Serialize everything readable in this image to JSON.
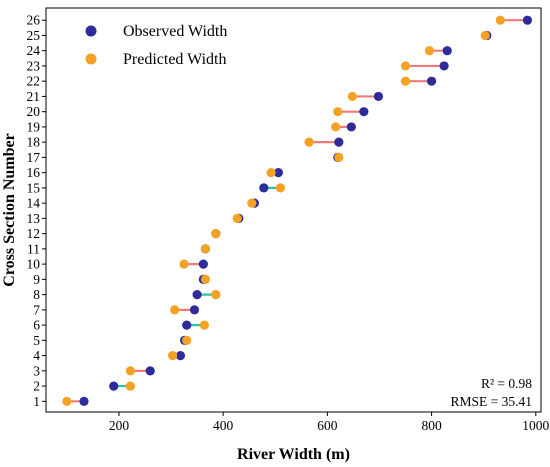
{
  "chart_data": {
    "type": "scatter",
    "xlabel": "River Width (m)",
    "ylabel": "Cross Section Number",
    "xlim": [
      60,
      1010
    ],
    "ylim": [
      0.3,
      26.8
    ],
    "xticks": [
      200,
      400,
      600,
      800,
      1000
    ],
    "yticks": [
      1,
      2,
      3,
      4,
      5,
      6,
      7,
      8,
      9,
      10,
      11,
      12,
      13,
      14,
      15,
      16,
      17,
      18,
      19,
      20,
      21,
      22,
      23,
      24,
      25,
      26
    ],
    "legend_position": "top-left",
    "grid": false,
    "series": [
      {
        "name": "Observed Width",
        "color": "#2e2b9a",
        "values": [
          {
            "section": 1,
            "width": 133
          },
          {
            "section": 2,
            "width": 190
          },
          {
            "section": 3,
            "width": 260
          },
          {
            "section": 4,
            "width": 318
          },
          {
            "section": 5,
            "width": 326
          },
          {
            "section": 6,
            "width": 330
          },
          {
            "section": 7,
            "width": 345
          },
          {
            "section": 8,
            "width": 350
          },
          {
            "section": 9,
            "width": 362
          },
          {
            "section": 10,
            "width": 362
          },
          {
            "section": 11,
            "width": 366
          },
          {
            "section": 12,
            "width": 386
          },
          {
            "section": 13,
            "width": 430
          },
          {
            "section": 14,
            "width": 460
          },
          {
            "section": 15,
            "width": 478
          },
          {
            "section": 16,
            "width": 506
          },
          {
            "section": 17,
            "width": 620
          },
          {
            "section": 18,
            "width": 622
          },
          {
            "section": 19,
            "width": 646
          },
          {
            "section": 20,
            "width": 670
          },
          {
            "section": 21,
            "width": 698
          },
          {
            "section": 22,
            "width": 800
          },
          {
            "section": 23,
            "width": 824
          },
          {
            "section": 24,
            "width": 830
          },
          {
            "section": 25,
            "width": 906
          },
          {
            "section": 26,
            "width": 984
          }
        ]
      },
      {
        "name": "Predicted Width",
        "color": "#f5a124",
        "values": [
          {
            "section": 1,
            "width": 100
          },
          {
            "section": 2,
            "width": 222
          },
          {
            "section": 3,
            "width": 222
          },
          {
            "section": 4,
            "width": 303
          },
          {
            "section": 5,
            "width": 330
          },
          {
            "section": 6,
            "width": 364
          },
          {
            "section": 7,
            "width": 307
          },
          {
            "section": 8,
            "width": 386
          },
          {
            "section": 9,
            "width": 366
          },
          {
            "section": 10,
            "width": 325
          },
          {
            "section": 11,
            "width": 366
          },
          {
            "section": 12,
            "width": 386
          },
          {
            "section": 13,
            "width": 427
          },
          {
            "section": 14,
            "width": 455
          },
          {
            "section": 15,
            "width": 510
          },
          {
            "section": 16,
            "width": 492
          },
          {
            "section": 17,
            "width": 622
          },
          {
            "section": 18,
            "width": 565
          },
          {
            "section": 19,
            "width": 616
          },
          {
            "section": 20,
            "width": 620
          },
          {
            "section": 21,
            "width": 648
          },
          {
            "section": 22,
            "width": 750
          },
          {
            "section": 23,
            "width": 750
          },
          {
            "section": 24,
            "width": 796
          },
          {
            "section": 25,
            "width": 903
          },
          {
            "section": 26,
            "width": 932
          }
        ]
      }
    ],
    "connector_colors": {
      "overpredicted": "#2ec4a6",
      "underpredicted": "#f07a7a"
    },
    "annotations": [
      "R² = 0.98",
      "RMSE = 35.41"
    ]
  }
}
